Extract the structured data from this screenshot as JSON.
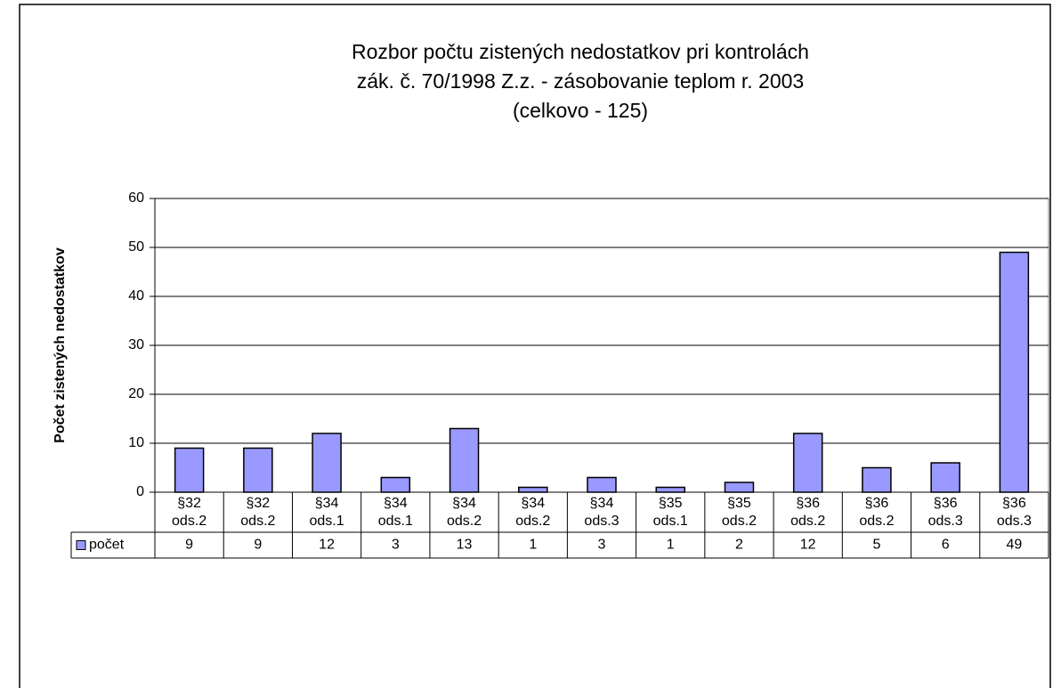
{
  "chart_data": {
    "type": "bar",
    "title": [
      "Rozbor počtu zistených nedostatkov pri kontrolách",
      "zák. č. 70/1998 Z.z. - zásobovanie teplom r. 2003",
      "(celkovo - 125)"
    ],
    "y_label": "Počet zistených nedostatkov",
    "categories": [
      "§32 ods.2",
      "§32 ods.2",
      "§34 ods.1",
      "§34 ods.1",
      "§34 ods.2",
      "§34 ods.2",
      "§34 ods.3",
      "§35 ods.1",
      "§35 ods.2",
      "§36 ods.2",
      "§36 ods.2",
      "§36 ods.3",
      "§36 ods.3"
    ],
    "series": [
      {
        "name": "počet",
        "color": "#9999ff",
        "values": [
          9,
          9,
          12,
          3,
          13,
          1,
          3,
          1,
          2,
          12,
          5,
          6,
          49
        ]
      }
    ],
    "ylim": [
      0,
      60
    ],
    "yticks": [
      0,
      10,
      20,
      30,
      40,
      50,
      60
    ],
    "grid": true
  }
}
